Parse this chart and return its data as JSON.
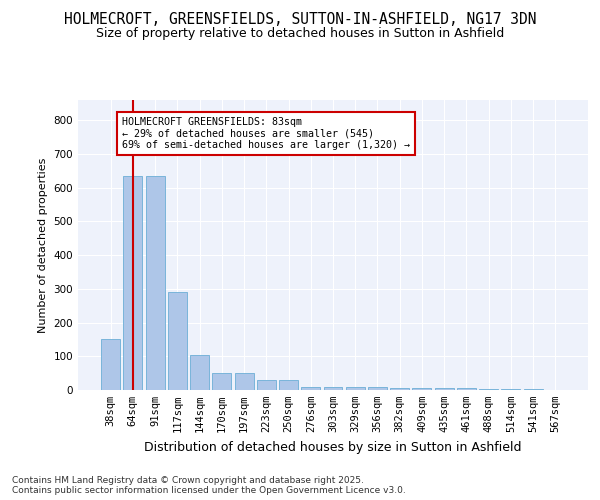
{
  "title": "HOLMECROFT, GREENSFIELDS, SUTTON-IN-ASHFIELD, NG17 3DN",
  "subtitle": "Size of property relative to detached houses in Sutton in Ashfield",
  "xlabel": "Distribution of detached houses by size in Sutton in Ashfield",
  "ylabel": "Number of detached properties",
  "categories": [
    "38sqm",
    "64sqm",
    "91sqm",
    "117sqm",
    "144sqm",
    "170sqm",
    "197sqm",
    "223sqm",
    "250sqm",
    "276sqm",
    "303sqm",
    "329sqm",
    "356sqm",
    "382sqm",
    "409sqm",
    "435sqm",
    "461sqm",
    "488sqm",
    "514sqm",
    "541sqm",
    "567sqm"
  ],
  "values": [
    150,
    635,
    635,
    290,
    105,
    50,
    50,
    30,
    30,
    10,
    10,
    10,
    10,
    5,
    5,
    5,
    5,
    3,
    2,
    2,
    1
  ],
  "bar_color": "#aec6e8",
  "bar_edge_color": "#6baed6",
  "vline_x": 1.0,
  "vline_color": "#cc0000",
  "annotation_title": "HOLMECROFT GREENSFIELDS: 83sqm",
  "annotation_line1": "← 29% of detached houses are smaller (545)",
  "annotation_line2": "69% of semi-detached houses are larger (1,320) →",
  "annotation_box_color": "#ffffff",
  "annotation_box_edge": "#cc0000",
  "ylim": [
    0,
    860
  ],
  "yticks": [
    0,
    100,
    200,
    300,
    400,
    500,
    600,
    700,
    800
  ],
  "background_color": "#eef2fb",
  "grid_color": "#ffffff",
  "title_fontsize": 10.5,
  "subtitle_fontsize": 9,
  "ylabel_fontsize": 8,
  "xlabel_fontsize": 9,
  "tick_fontsize": 7.5,
  "footer_text": "Contains HM Land Registry data © Crown copyright and database right 2025.\nContains public sector information licensed under the Open Government Licence v3.0."
}
